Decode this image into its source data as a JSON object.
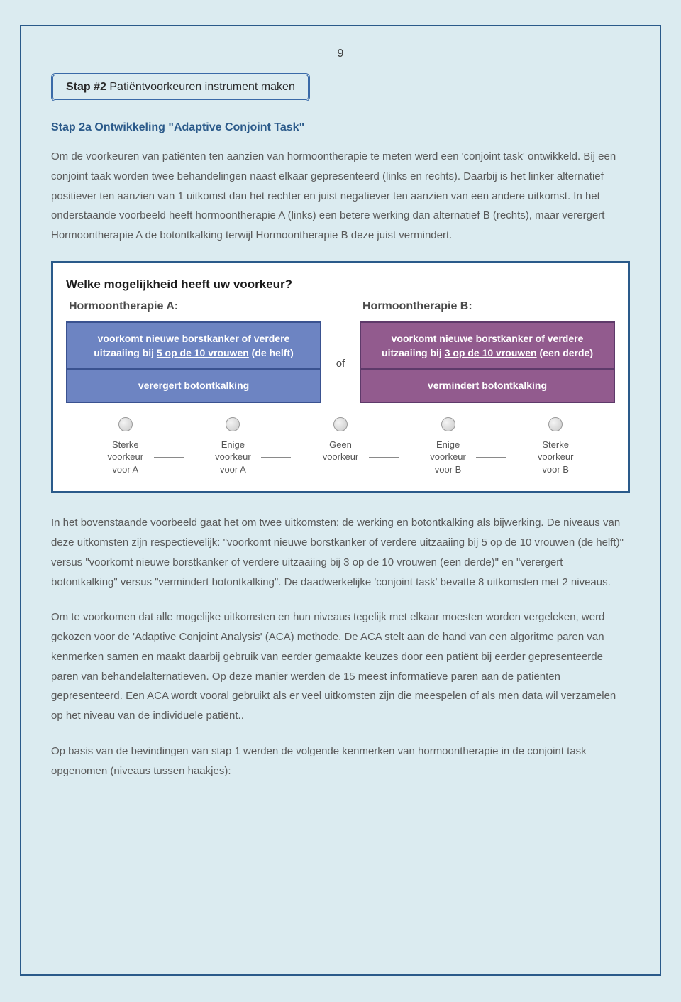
{
  "page_number": "9",
  "step_header": {
    "bold": "Stap #2",
    "rest": " Patiëntvoorkeuren instrument maken"
  },
  "subheading": "Stap 2a Ontwikkeling \"Adaptive Conjoint Task\"",
  "para1": "Om de voorkeuren van patiënten ten aanzien van hormoontherapie te meten werd een 'conjoint task' ontwikkeld. Bij een conjoint taak worden twee behandelingen naast elkaar gepresenteerd (links en rechts). Daarbij is het linker alternatief positiever ten aanzien van 1 uitkomst dan het rechter en juist negatiever ten aanzien van een andere uitkomst. In het onderstaande voorbeeld heeft hormoontherapie A (links) een betere werking dan alternatief B (rechts), maar verergert Hormoontherapie A de botontkalking terwijl Hormoontherapie B deze juist vermindert.",
  "conjoint": {
    "question": "Welke mogelijkheid heeft uw voorkeur?",
    "colA_heading": "Hormoontherapie A:",
    "colB_heading": "Hormoontherapie B:",
    "of_label": "of",
    "A_cell1_pre": "voorkomt nieuwe borstkanker of verdere uitzaaiing bij ",
    "A_cell1_u": "5 op de 10 vrouwen",
    "A_cell1_post": " (de helft)",
    "A_cell2_u": "verergert",
    "A_cell2_post": " botontkalking",
    "B_cell1_pre": "voorkomt nieuwe borstkanker of verdere uitzaaiing bij ",
    "B_cell1_u": "3 op de 10 vrouwen",
    "B_cell1_post": " (een derde)",
    "B_cell2_u": "vermindert",
    "B_cell2_post": " botontkalking",
    "radios": [
      "Sterke\nvoorkeur\nvoor A",
      "Enige\nvoorkeur\nvoor A",
      "Geen\nvoorkeur",
      "Enige\nvoorkeur\nvoor B",
      "Sterke\nvoorkeur\nvoor B"
    ]
  },
  "para2": "In het bovenstaande voorbeeld gaat het om twee uitkomsten: de werking en botontkalking als bijwerking. De niveaus van deze uitkomsten zijn respectievelijk: \"voorkomt nieuwe borstkanker of verdere uitzaaiing bij 5 op de 10 vrouwen (de helft)\" versus \"voorkomt nieuwe borstkanker of verdere uitzaaiing bij 3 op de 10 vrouwen (een derde)\" en \"verergert botontkalking\" versus \"vermindert botontkalking\". De daadwerkelijke 'conjoint task' bevatte 8 uitkomsten met 2 niveaus.",
  "para3": "Om te voorkomen dat alle mogelijke uitkomsten en hun niveaus tegelijk met elkaar moesten worden vergeleken, werd gekozen voor de 'Adaptive Conjoint Analysis' (ACA) methode. De ACA stelt aan de hand van een algoritme paren van kenmerken samen en maakt daarbij gebruik van eerder gemaakte keuzes door een patiënt bij eerder gepresenteerde paren van behandelalternatieven. Op deze manier werden de 15 meest informatieve paren aan de patiënten gepresenteerd. Een ACA wordt vooral gebruikt als er veel uitkomsten zijn die meespelen of als men data wil verzamelen op het niveau van de individuele patiënt..",
  "para4": "Op basis van de bevindingen van stap 1 werden de volgende kenmerken van hormoontherapie in de conjoint task opgenomen (niveaus tussen haakjes):",
  "colors": {
    "page_bg": "#dbebf0",
    "page_border": "#2a5a8a",
    "card_a_bg": "#6d84c2",
    "card_a_border": "#3a5290",
    "card_b_bg": "#925b8e",
    "card_b_border": "#5e3a6a"
  }
}
